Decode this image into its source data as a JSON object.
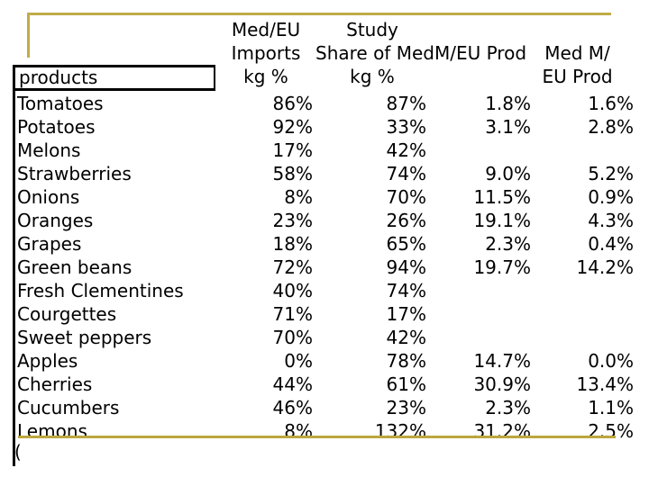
{
  "colors": {
    "accent_gold": "#C0AC4A",
    "table_rule_black": "#000000",
    "background": "#FFFFFF",
    "text": "#000000"
  },
  "header": {
    "products_label": "products",
    "med_eu_imports": [
      "Med/EU",
      "Imports",
      "kg %"
    ],
    "study_share": [
      "Study",
      "Share of Med",
      "kg %"
    ],
    "m_eu_prod": [
      "",
      "M/EU Prod",
      ""
    ],
    "med_m_eu_prod": [
      "",
      "Med M/",
      "EU Prod"
    ]
  },
  "truncated_row_text": "(",
  "chart_data": {
    "type": "table",
    "columns": [
      "products",
      "Med/EU Imports kg %",
      "Study Share of Med kg %",
      "M/EU Prod",
      "Med M/ EU Prod"
    ],
    "rows": [
      [
        "Tomatoes",
        "86%",
        "87%",
        "1.8%",
        "1.6%"
      ],
      [
        "Potatoes",
        "92%",
        "33%",
        "3.1%",
        "2.8%"
      ],
      [
        "Melons",
        "17%",
        "42%",
        "",
        ""
      ],
      [
        "Strawberries",
        "58%",
        "74%",
        "9.0%",
        "5.2%"
      ],
      [
        "Onions",
        "8%",
        "70%",
        "11.5%",
        "0.9%"
      ],
      [
        "Oranges",
        "23%",
        "26%",
        "19.1%",
        "4.3%"
      ],
      [
        "Grapes",
        "18%",
        "65%",
        "2.3%",
        "0.4%"
      ],
      [
        "Green beans",
        "72%",
        "94%",
        "19.7%",
        "14.2%"
      ],
      [
        "Fresh Clementines",
        "40%",
        "74%",
        "",
        ""
      ],
      [
        "Courgettes",
        "71%",
        "17%",
        "",
        ""
      ],
      [
        "Sweet peppers",
        "70%",
        "42%",
        "",
        ""
      ],
      [
        "Apples",
        "0%",
        "78%",
        "14.7%",
        "0.0%"
      ],
      [
        "Cherries",
        "44%",
        "61%",
        "30.9%",
        "13.4%"
      ],
      [
        "Cucumbers",
        "46%",
        "23%",
        "2.3%",
        "1.1%"
      ],
      [
        "Lemons",
        "8%",
        "132%",
        "31.2%",
        "2.5%"
      ]
    ]
  }
}
